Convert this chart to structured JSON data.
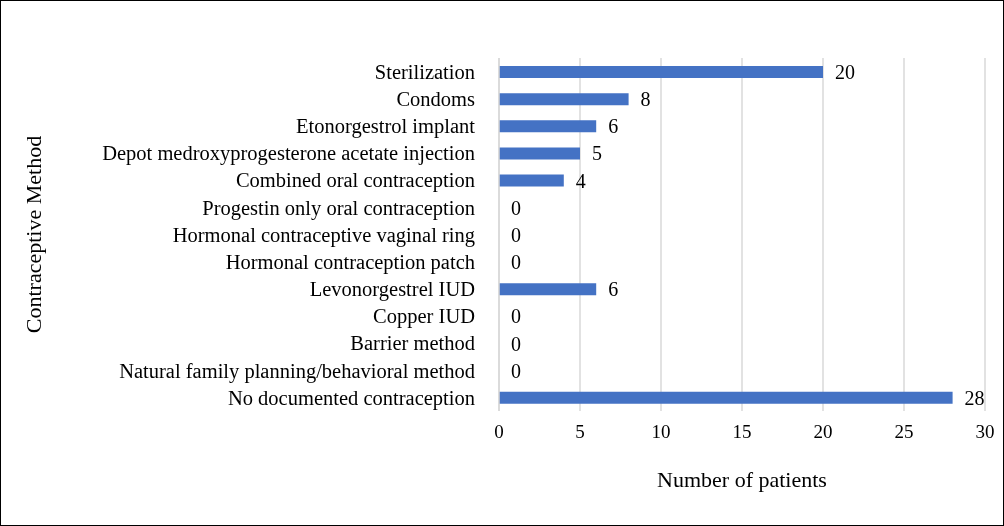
{
  "chart_data": {
    "type": "bar",
    "orientation": "horizontal",
    "xlabel": "Number of patients",
    "ylabel": "Contraceptive Method",
    "categories": [
      "Sterilization",
      "Condoms",
      "Etonorgestrol implant",
      "Depot medroxyprogesterone acetate injection",
      "Combined oral contraception",
      "Progestin only oral contraception",
      "Hormonal contraceptive vaginal ring",
      "Hormonal contraception patch",
      "Levonorgestrel IUD",
      "Copper IUD",
      "Barrier method",
      "Natural family planning/behavioral method",
      "No documented contraception"
    ],
    "values": [
      20,
      8,
      6,
      5,
      4,
      0,
      0,
      0,
      6,
      0,
      0,
      0,
      28
    ],
    "color": "#4472c4",
    "xlim": [
      0,
      30
    ],
    "xticks": [
      0,
      5,
      10,
      15,
      20,
      25,
      30
    ],
    "grid": "x",
    "data_labels": true
  }
}
